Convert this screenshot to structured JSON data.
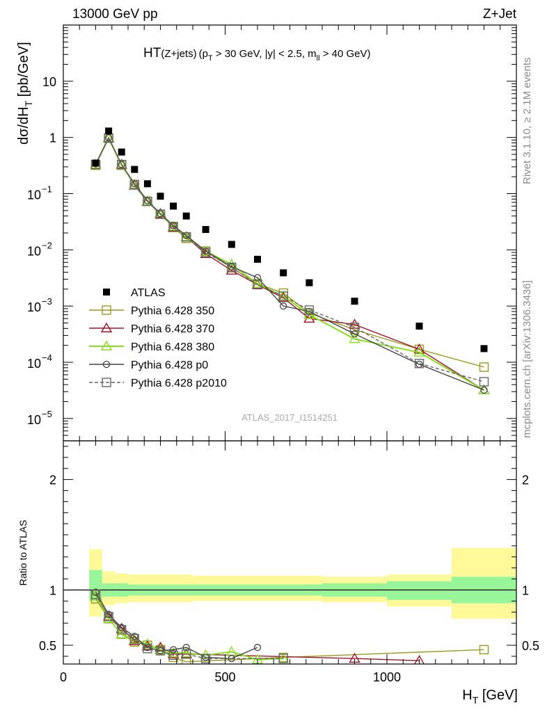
{
  "header": {
    "left": "13000 GeV pp",
    "right": "Z+Jet"
  },
  "side_labels": {
    "rivet": "Rivet 3.1.10, ≥ 2.1M events",
    "mcplots": "mcplots.cern.ch [arXiv:1306.3436]"
  },
  "chart_data": [
    {
      "type": "scatter",
      "title": "HT(Z+jets) (p_T > 30 GeV, |y| < 2.5, m_ll > 40 GeV)",
      "title_parts": {
        "ht": "HT",
        "paren": "(Z+jets)",
        "open": "(p",
        "pt_sub": "T",
        "mid": " > 30 GeV, |y| < 2.5, m",
        "m_sub": "ll",
        "end": " > 40 GeV)"
      },
      "ylabel_parts": {
        "main": "dσ/dH",
        "sub": "T",
        "unit": " [pb/GeV]"
      },
      "analysis_label": "ATLAS_2017_I1514251",
      "yscale": "log",
      "xlim": [
        0,
        1400
      ],
      "ylim": [
        4e-06,
        100
      ],
      "y_ticks": [
        {
          "value": 10,
          "label": "10"
        },
        {
          "value": 1,
          "label": "1"
        },
        {
          "value": 0.1,
          "base": "10",
          "exp": "−1"
        },
        {
          "value": 0.01,
          "base": "10",
          "exp": "−2"
        },
        {
          "value": 0.001,
          "base": "10",
          "exp": "−3"
        },
        {
          "value": 0.0001,
          "base": "10",
          "exp": "−4"
        },
        {
          "value": 1e-05,
          "base": "10",
          "exp": "−5"
        }
      ],
      "legend_position": "bottom-left",
      "series": [
        {
          "name": "ATLAS",
          "color": "#000000",
          "marker": "filled-square",
          "x": [
            100,
            140,
            180,
            220,
            260,
            300,
            340,
            380,
            440,
            520,
            600,
            680,
            760,
            900,
            1100,
            1300
          ],
          "y": [
            0.35,
            1.3,
            0.55,
            0.27,
            0.15,
            0.09,
            0.06,
            0.04,
            0.023,
            0.0125,
            0.0068,
            0.0039,
            0.0026,
            0.00122,
            0.00044,
            0.000175
          ]
        },
        {
          "name": "Pythia 6.428 350",
          "color": "#9a9a1e",
          "marker": "open-square",
          "x": [
            100,
            140,
            180,
            220,
            260,
            300,
            340,
            380,
            440,
            520,
            600,
            680,
            760,
            900,
            1100,
            1300
          ],
          "y": [
            0.32,
            0.97,
            0.32,
            0.145,
            0.073,
            0.043,
            0.025,
            0.016,
            0.0095,
            0.0048,
            0.0025,
            0.0017,
            0.00075,
            0.00038,
            0.00017,
            8.2e-05
          ]
        },
        {
          "name": "Pythia 6.428 370",
          "color": "#a0142a",
          "marker": "open-triangle",
          "x": [
            100,
            140,
            180,
            220,
            260,
            300,
            340,
            380,
            440,
            520,
            600,
            680,
            760,
            900,
            1100,
            1300
          ],
          "y": [
            0.33,
            0.98,
            0.33,
            0.14,
            0.072,
            0.044,
            0.025,
            0.017,
            0.0085,
            0.0043,
            0.0024,
            0.0014,
            0.0006,
            0.00047,
            0.00017,
            3.2e-05
          ]
        },
        {
          "name": "Pythia 6.428 380",
          "color": "#88dd22",
          "marker": "open-triangle",
          "x": [
            100,
            140,
            180,
            220,
            260,
            300,
            340,
            380,
            440,
            520,
            600,
            680,
            760,
            900,
            1100,
            1300
          ],
          "y": [
            0.33,
            0.96,
            0.32,
            0.145,
            0.074,
            0.042,
            0.026,
            0.017,
            0.0095,
            0.0055,
            0.0025,
            0.0015,
            0.0007,
            0.00026,
            0.00015,
            3.2e-05
          ]
        },
        {
          "name": "Pythia 6.428 p0",
          "color": "#444444",
          "marker": "open-circle",
          "x": [
            100,
            140,
            180,
            220,
            260,
            300,
            340,
            380,
            440,
            520,
            600,
            680,
            760,
            900,
            1100,
            1300
          ],
          "y": [
            0.34,
            0.99,
            0.33,
            0.15,
            0.075,
            0.044,
            0.027,
            0.018,
            0.0095,
            0.005,
            0.0032,
            0.001,
            0.0008,
            0.00032,
            9.2e-05,
            3.2e-05
          ]
        },
        {
          "name": "Pythia 6.428 p2010",
          "color": "#666666",
          "marker": "open-square",
          "dashed": true,
          "x": [
            100,
            140,
            180,
            220,
            260,
            300,
            340,
            380,
            440,
            520,
            600,
            680,
            760,
            900,
            1100,
            1300
          ],
          "y": [
            0.33,
            0.97,
            0.33,
            0.145,
            0.073,
            0.043,
            0.026,
            0.017,
            0.009,
            0.0049,
            0.0024,
            0.0015,
            0.00085,
            0.00042,
            9.5e-05,
            4.5e-05
          ]
        }
      ]
    },
    {
      "type": "scatter",
      "ylabel": "Ratio to ATLAS",
      "xlabel_parts": {
        "main": "H",
        "sub": "T",
        "unit": " [GeV]"
      },
      "xlim": [
        0,
        1400
      ],
      "ylim": [
        0.33,
        2.35
      ],
      "x_ticks": [
        {
          "value": 0,
          "label": "0"
        },
        {
          "value": 500,
          "label": "500"
        },
        {
          "value": 1000,
          "label": "1000"
        }
      ],
      "y_ticks": [
        {
          "value": 0.5,
          "label": "0.5"
        },
        {
          "value": 1,
          "label": "1"
        },
        {
          "value": 2,
          "label": "2"
        }
      ],
      "reference_line": 1,
      "bands": [
        {
          "x": [
            80,
            120
          ],
          "inner": [
            0.9,
            1.18
          ],
          "outer": [
            0.76,
            1.37
          ]
        },
        {
          "x": [
            120,
            160
          ],
          "inner": [
            0.94,
            1.06
          ],
          "outer": [
            0.86,
            1.17
          ]
        },
        {
          "x": [
            160,
            200
          ],
          "inner": [
            0.94,
            1.06
          ],
          "outer": [
            0.88,
            1.15
          ]
        },
        {
          "x": [
            200,
            400
          ],
          "inner": [
            0.95,
            1.05
          ],
          "outer": [
            0.89,
            1.14
          ]
        },
        {
          "x": [
            400,
            800
          ],
          "inner": [
            0.95,
            1.05
          ],
          "outer": [
            0.9,
            1.13
          ]
        },
        {
          "x": [
            800,
            1000
          ],
          "inner": [
            0.94,
            1.06
          ],
          "outer": [
            0.89,
            1.12
          ]
        },
        {
          "x": [
            1000,
            1200
          ],
          "inner": [
            0.91,
            1.08
          ],
          "outer": [
            0.85,
            1.14
          ]
        },
        {
          "x": [
            1200,
            1400
          ],
          "inner": [
            0.88,
            1.12
          ],
          "outer": [
            0.74,
            1.38
          ]
        }
      ],
      "series": [
        {
          "name": "Pythia 6.428 350",
          "x": [
            100,
            140,
            180,
            220,
            260,
            300,
            340,
            380,
            680,
            1300
          ],
          "y": [
            0.92,
            0.74,
            0.6,
            0.53,
            0.5,
            0.46,
            0.39,
            0.35,
            0.39,
            0.46
          ]
        },
        {
          "name": "Pythia 6.428 370",
          "x": [
            100,
            140,
            180,
            220,
            260,
            300,
            340,
            380,
            900,
            1100
          ],
          "y": [
            0.95,
            0.76,
            0.65,
            0.54,
            0.49,
            0.48,
            0.42,
            0.42,
            0.38,
            0.36
          ]
        },
        {
          "name": "Pythia 6.428 380",
          "x": [
            100,
            140,
            180,
            220,
            260,
            300,
            340,
            380,
            440,
            520,
            600,
            680
          ],
          "y": [
            0.95,
            0.74,
            0.6,
            0.55,
            0.51,
            0.46,
            0.43,
            0.43,
            0.41,
            0.44,
            0.37,
            0.38
          ]
        },
        {
          "name": "Pythia 6.428 p0",
          "x": [
            100,
            140,
            180,
            220,
            260,
            300,
            340,
            380,
            440,
            520,
            600
          ],
          "y": [
            0.98,
            0.78,
            0.66,
            0.58,
            0.48,
            0.45,
            0.46,
            0.48,
            0.39,
            0.38,
            0.48
          ]
        },
        {
          "name": "Pythia 6.428 p2010",
          "x": [
            100,
            140,
            180,
            220,
            260,
            300,
            340,
            380,
            440,
            680
          ],
          "y": [
            0.96,
            0.76,
            0.64,
            0.56,
            0.47,
            0.45,
            0.41,
            0.42,
            0.38,
            0.38
          ]
        }
      ]
    }
  ]
}
